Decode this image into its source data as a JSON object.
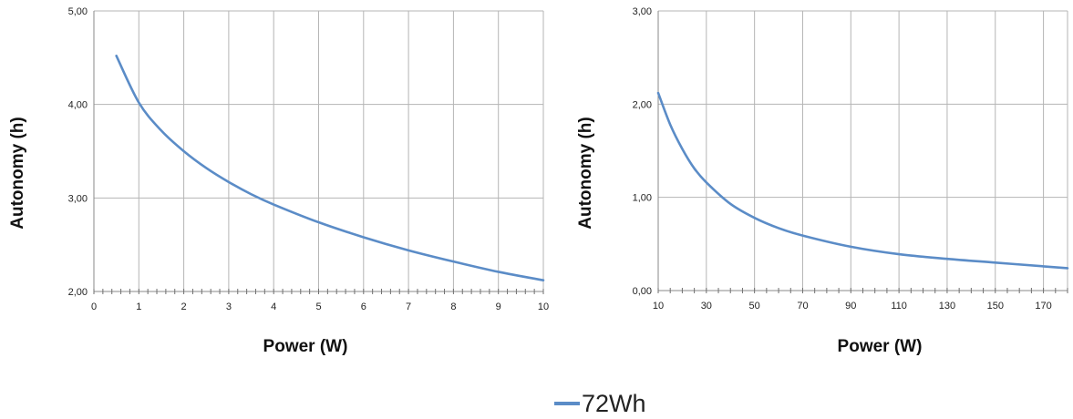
{
  "chart_data": [
    {
      "type": "line",
      "xlabel": "Power (W)",
      "ylabel": "Autonomy (h)",
      "xlim": [
        0,
        10
      ],
      "ylim": [
        2,
        5
      ],
      "xticks": [
        "0",
        "1",
        "2",
        "3",
        "4",
        "5",
        "6",
        "7",
        "8",
        "9",
        "10"
      ],
      "yticks": [
        "2,00",
        "3,00",
        "4,00",
        "5,00"
      ],
      "grid": true,
      "series": [
        {
          "name": "72Wh",
          "color": "#5b8cc7",
          "x": [
            0.5,
            1,
            1.5,
            2,
            2.5,
            3,
            3.5,
            4,
            5,
            6,
            7,
            8,
            9,
            10
          ],
          "y": [
            4.52,
            4.02,
            3.72,
            3.5,
            3.32,
            3.17,
            3.04,
            2.93,
            2.74,
            2.58,
            2.44,
            2.32,
            2.21,
            2.12
          ]
        }
      ]
    },
    {
      "type": "line",
      "xlabel": "Power (W)",
      "ylabel": "Autonomy (h)",
      "xlim": [
        10,
        180
      ],
      "ylim": [
        0,
        3
      ],
      "xticks": [
        "10",
        "30",
        "50",
        "70",
        "90",
        "110",
        "130",
        "150",
        "170"
      ],
      "yticks": [
        "0,00",
        "1,00",
        "2,00",
        "3,00"
      ],
      "grid": true,
      "series": [
        {
          "name": "72Wh",
          "color": "#5b8cc7",
          "x": [
            10,
            15,
            20,
            25,
            30,
            40,
            50,
            60,
            70,
            90,
            110,
            130,
            150,
            170,
            180
          ],
          "y": [
            2.12,
            1.78,
            1.52,
            1.31,
            1.16,
            0.93,
            0.78,
            0.67,
            0.59,
            0.47,
            0.39,
            0.34,
            0.3,
            0.26,
            0.24
          ]
        }
      ]
    }
  ],
  "legend": {
    "label": "72Wh",
    "color": "#5b8cc7"
  }
}
